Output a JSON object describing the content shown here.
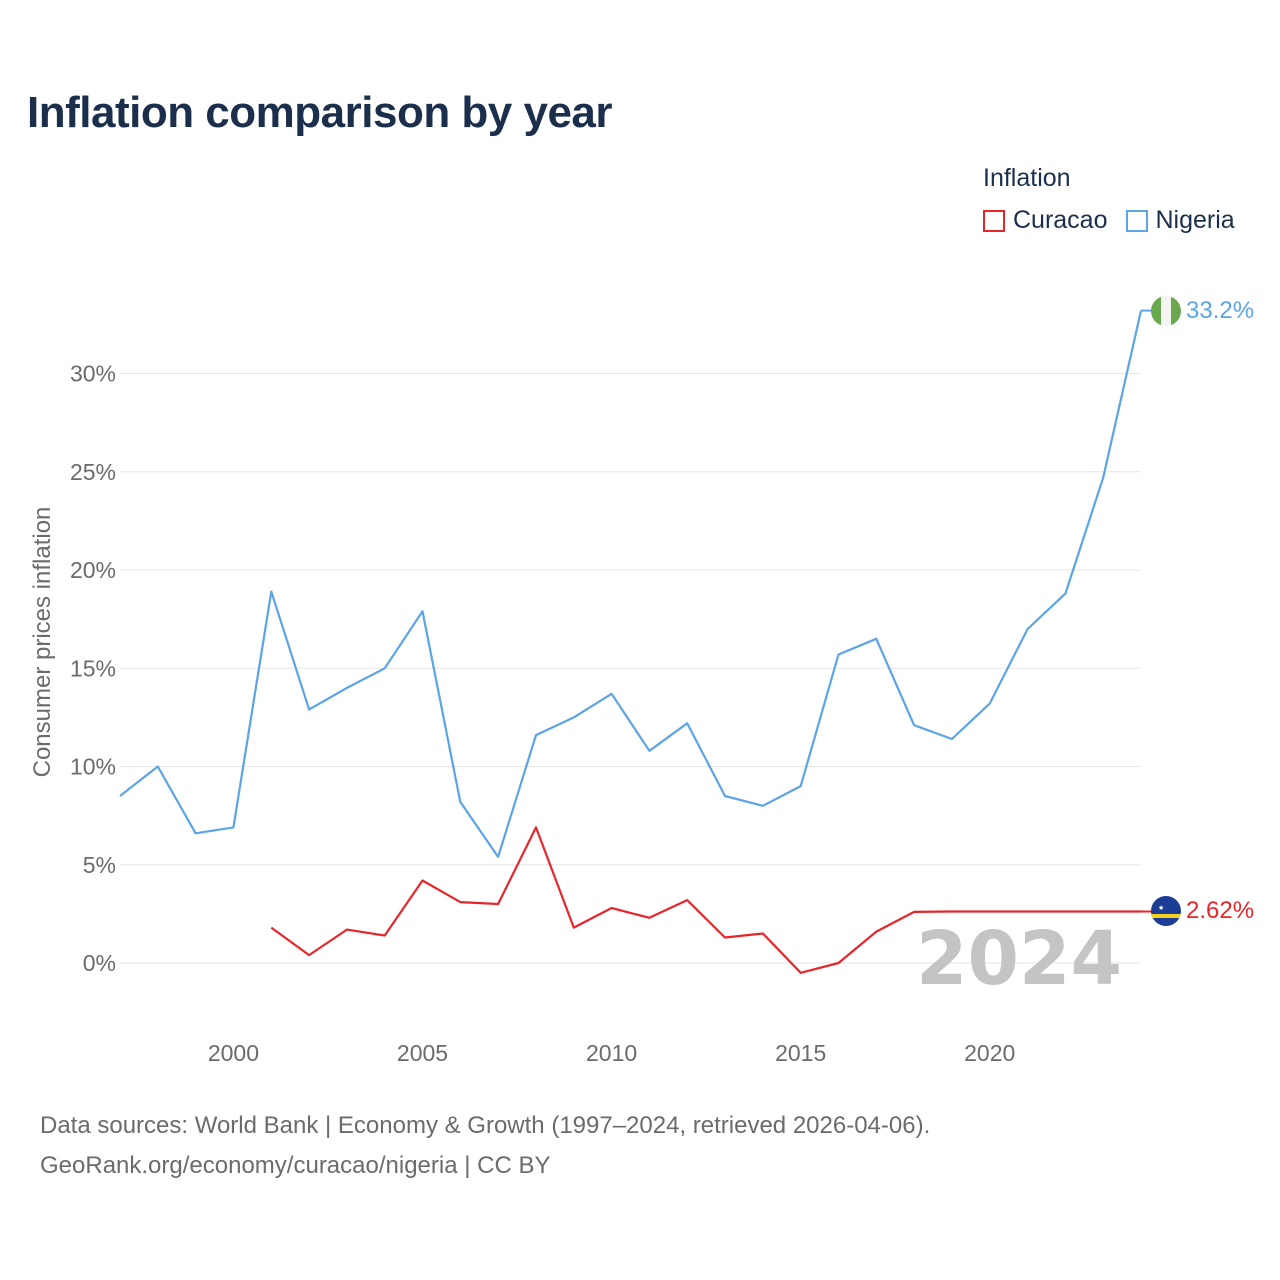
{
  "title": "Inflation comparison by year",
  "legend": {
    "title": "Inflation",
    "items": [
      {
        "label": "Curacao",
        "color": "#e8252a"
      },
      {
        "label": "Nigeria",
        "color": "#5ba4e5"
      }
    ]
  },
  "footer": {
    "line1": "Data sources: World Bank | Economy & Growth (1997–2024, retrieved 2026-04-06).",
    "line2": "GeoRank.org/economy/curacao/nigeria | CC BY"
  },
  "chart_data": {
    "type": "line",
    "title": "Inflation comparison by year",
    "xlabel": "",
    "ylabel": "Consumer prices inflation",
    "xlim": [
      1997,
      2024
    ],
    "ylim": [
      -2,
      33.5
    ],
    "x_ticks": [
      2000,
      2005,
      2010,
      2015,
      2020
    ],
    "y_ticks": [
      0,
      5,
      10,
      15,
      20,
      25,
      30
    ],
    "y_tick_labels": [
      "0%",
      "5%",
      "10%",
      "15%",
      "20%",
      "25%",
      "30%"
    ],
    "grid": true,
    "year_watermark": "2024",
    "series": [
      {
        "name": "Curacao",
        "color": "#e8252a",
        "end_label": "2.62%",
        "flag": "curacao-flag",
        "x": [
          2001,
          2002,
          2003,
          2004,
          2005,
          2006,
          2007,
          2008,
          2009,
          2010,
          2011,
          2012,
          2013,
          2014,
          2015,
          2016,
          2017,
          2018,
          2019,
          2024
        ],
        "values": [
          1.8,
          0.4,
          1.7,
          1.4,
          4.2,
          3.1,
          3.0,
          6.9,
          1.8,
          2.8,
          2.3,
          3.2,
          1.3,
          1.5,
          -0.5,
          0.0,
          1.6,
          2.6,
          2.62,
          2.62
        ]
      },
      {
        "name": "Nigeria",
        "color": "#5ba4e5",
        "end_label": "33.2%",
        "flag": "nigeria-flag",
        "x": [
          1997,
          1998,
          1999,
          2000,
          2001,
          2002,
          2003,
          2004,
          2005,
          2006,
          2007,
          2008,
          2009,
          2010,
          2011,
          2012,
          2013,
          2014,
          2015,
          2016,
          2017,
          2018,
          2019,
          2020,
          2021,
          2022,
          2023,
          2024
        ],
        "values": [
          8.5,
          10.0,
          6.6,
          6.9,
          18.9,
          12.9,
          14.0,
          15.0,
          17.9,
          8.2,
          5.4,
          11.6,
          12.5,
          13.7,
          10.8,
          12.2,
          8.5,
          8.0,
          9.0,
          15.7,
          16.5,
          12.1,
          11.4,
          13.2,
          17.0,
          18.8,
          24.7,
          33.2
        ]
      }
    ]
  }
}
